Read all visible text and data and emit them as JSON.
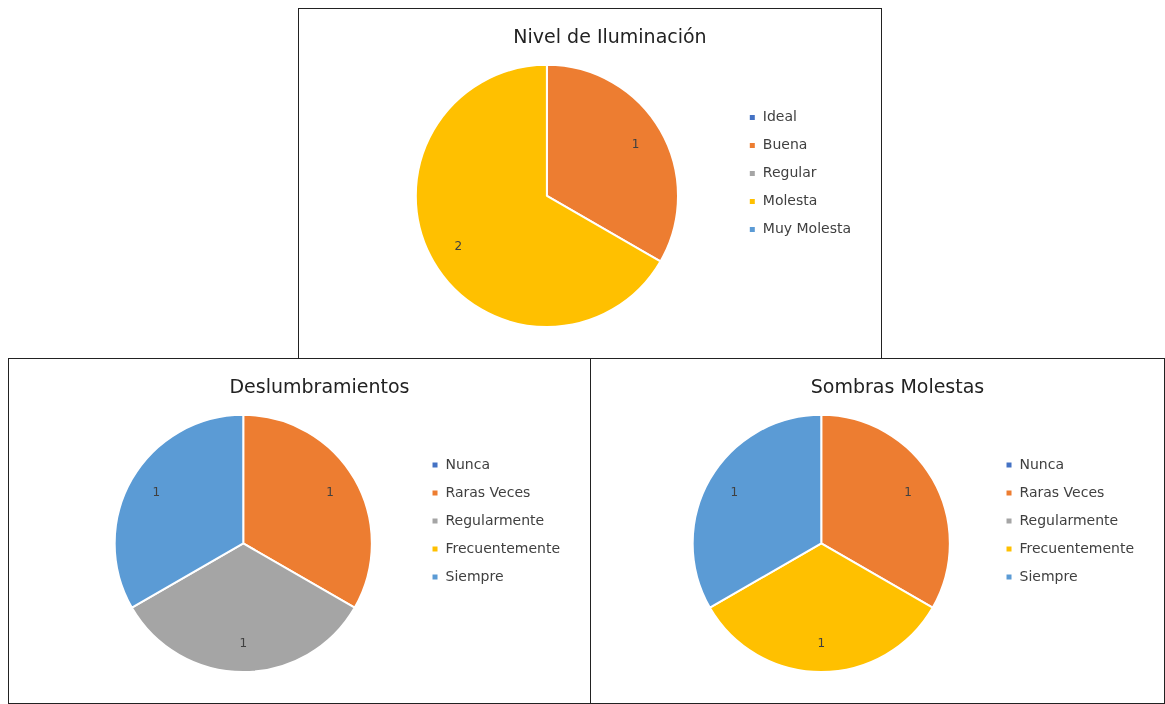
{
  "chart_data": [
    {
      "type": "pie",
      "title": "Nivel de Iluminación",
      "categories": [
        "Ideal",
        "Buena",
        "Regular",
        "Molesta",
        "Muy Molesta"
      ],
      "values": [
        0,
        1,
        0,
        2,
        0
      ],
      "value_labels": [
        null,
        "1",
        null,
        "2",
        null
      ],
      "colors": [
        "#4472c4",
        "#ed7d31",
        "#a5a5a5",
        "#ffc000",
        "#5b9bd5"
      ],
      "legend": "right"
    },
    {
      "type": "pie",
      "title": "Deslumbramientos",
      "categories": [
        "Nunca",
        "Raras Veces",
        "Regularmente",
        "Frecuentemente",
        "Siempre"
      ],
      "values": [
        0,
        1,
        1,
        0,
        1
      ],
      "value_labels": [
        null,
        "1",
        "1",
        null,
        "1"
      ],
      "colors": [
        "#4472c4",
        "#ed7d31",
        "#a5a5a5",
        "#ffc000",
        "#5b9bd5"
      ],
      "legend": "right"
    },
    {
      "type": "pie",
      "title": "Sombras Molestas",
      "categories": [
        "Nunca",
        "Raras Veces",
        "Regularmente",
        "Frecuentemente",
        "Siempre"
      ],
      "values": [
        0,
        1,
        0,
        1,
        1
      ],
      "value_labels": [
        null,
        "1",
        null,
        "1",
        "1"
      ],
      "colors": [
        "#4472c4",
        "#ed7d31",
        "#a5a5a5",
        "#ffc000",
        "#5b9bd5"
      ],
      "legend": "right"
    }
  ]
}
